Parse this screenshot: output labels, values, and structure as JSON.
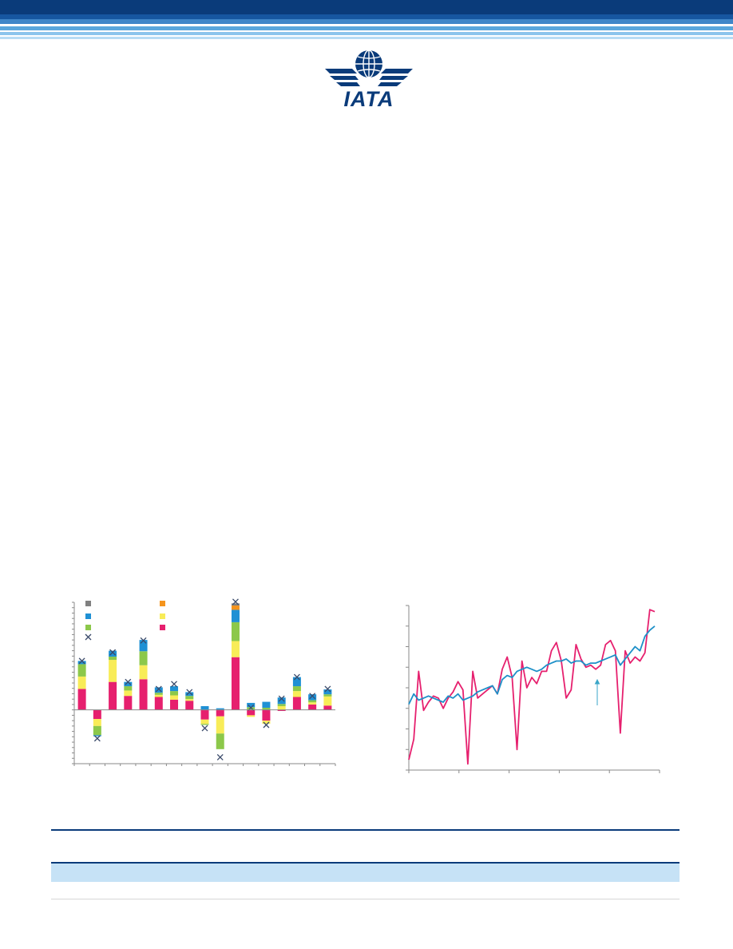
{
  "brand": {
    "logo_text": "IATA",
    "logo_color": "#0a3b7a"
  },
  "colors": {
    "magenta": "#e6206e",
    "yellow": "#f8ec58",
    "green": "#8cc84a",
    "blue": "#1f90d4",
    "orange": "#f5941d",
    "grey": "#808080",
    "teal_line": "#1e90c8",
    "navy": "#0a3b7a",
    "table_highlight": "#c6e2f6"
  },
  "chart_data": [
    {
      "type": "bar",
      "stacked": true,
      "title": "",
      "xlabel": "",
      "ylabel": "",
      "legend": {
        "placement": "top-left",
        "icons": [
          "square-grey",
          "square-orange",
          "square-blue",
          "square-yellow",
          "square-green",
          "square-magenta",
          "cross"
        ]
      },
      "series_colors": [
        "#e6206e",
        "#f8ec58",
        "#8cc84a",
        "#1f90d4",
        "#f5941d",
        "#808080"
      ],
      "ylim": [
        -10,
        20
      ],
      "stacks": [
        [
          3.9,
          2.3,
          2.3,
          0.6
        ],
        [
          -1.7,
          -1.3,
          -1.7,
          -0.2
        ],
        [
          5.2,
          4.1,
          0.6,
          1.1
        ],
        [
          2.6,
          1.0,
          0.8,
          0.8
        ],
        [
          5.7,
          2.6,
          2.6,
          2.1
        ],
        [
          2.4,
          0.4,
          0.4,
          1.0
        ],
        [
          1.9,
          0.8,
          0.8,
          0.9
        ],
        [
          1.7,
          0.3,
          0.6,
          0.7
        ],
        [
          -1.8,
          -0.8,
          -0.2,
          0.7
        ],
        [
          -1.2,
          -3.2,
          -2.9,
          0.3
        ],
        [
          9.8,
          3.0,
          3.5,
          2.3,
          0.8,
          0.4
        ],
        [
          -1.0,
          -0.3,
          0.5,
          0.8
        ],
        [
          -2.0,
          -0.6,
          0.4,
          1.1
        ],
        [
          -0.2,
          0.7,
          0.4,
          1.2
        ],
        [
          2.4,
          1.1,
          0.9,
          1.7
        ],
        [
          1.0,
          0.4,
          0.4,
          1.1
        ],
        [
          0.8,
          1.7,
          0.4,
          0.9
        ]
      ],
      "crosses": [
        9.1,
        -5.3,
        10.7,
        5.2,
        12.9,
        3.9,
        4.8,
        3.3,
        -3.4,
        -8.8,
        20.1,
        0.4,
        -2.8,
        2.1,
        6.1,
        2.6,
        3.9
      ]
    },
    {
      "type": "line",
      "title": "",
      "xlabel": "",
      "ylabel": "",
      "ylim": [
        0,
        8
      ],
      "x_ticks": 5,
      "series": [
        {
          "color": "#e6206e",
          "values": [
            0.5,
            1.5,
            4.8,
            2.9,
            3.3,
            3.6,
            3.5,
            3.0,
            3.5,
            3.8,
            4.3,
            3.9,
            0.3,
            4.8,
            3.5,
            3.7,
            3.9,
            4.1,
            3.7,
            4.9,
            5.5,
            4.5,
            1.0,
            5.3,
            4.0,
            4.5,
            4.2,
            4.8,
            4.8,
            5.8,
            6.2,
            5.3,
            3.5,
            3.9,
            6.1,
            5.4,
            5.0,
            5.1,
            4.9,
            5.1,
            6.1,
            6.3,
            5.8,
            1.8,
            5.8,
            5.2,
            5.5,
            5.3,
            5.7,
            7.8,
            7.7
          ]
        },
        {
          "color": "#1e90c8",
          "values": [
            3.2,
            3.7,
            3.4,
            3.5,
            3.6,
            3.5,
            3.4,
            3.3,
            3.6,
            3.5,
            3.7,
            3.4,
            3.5,
            3.6,
            3.8,
            3.9,
            4.0,
            4.1,
            3.7,
            4.4,
            4.6,
            4.5,
            4.8,
            4.9,
            5.0,
            4.9,
            4.8,
            4.9,
            5.1,
            5.2,
            5.3,
            5.3,
            5.4,
            5.2,
            5.3,
            5.3,
            5.1,
            5.2,
            5.2,
            5.3,
            5.4,
            5.5,
            5.6,
            5.1,
            5.4,
            5.7,
            6.0,
            5.8,
            6.5,
            6.8,
            7.0
          ]
        }
      ]
    }
  ]
}
